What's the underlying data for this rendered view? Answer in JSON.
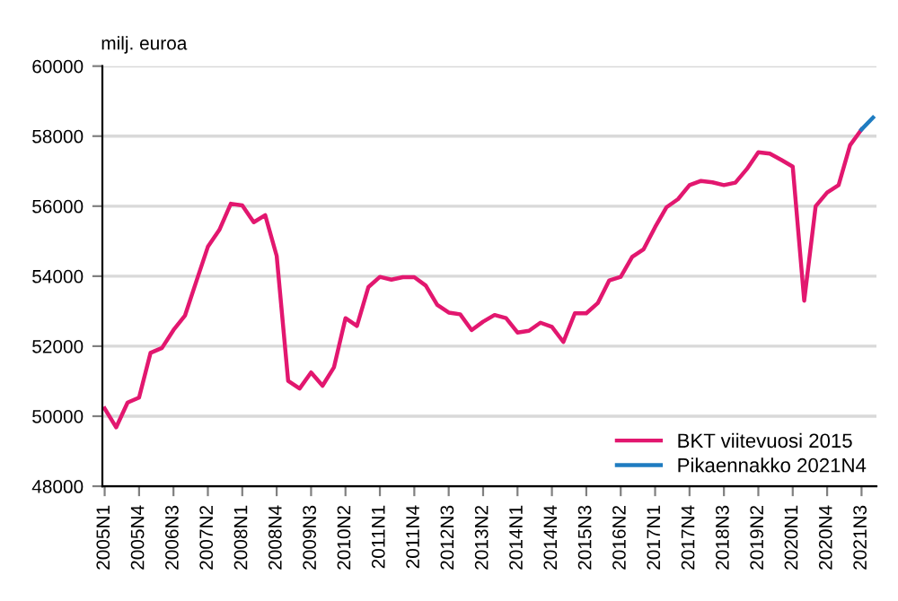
{
  "chart_data": {
    "type": "line",
    "ylabel": "milj. euroa",
    "categories": [
      "2005N1",
      null,
      null,
      "2005N4",
      null,
      null,
      "2006N3",
      null,
      null,
      "2007N2",
      null,
      null,
      "2008N1",
      null,
      null,
      "2008N4",
      null,
      null,
      "2009N3",
      null,
      null,
      "2010N2",
      null,
      null,
      "2011N1",
      null,
      null,
      "2011N4",
      null,
      null,
      "2012N3",
      null,
      null,
      "2013N2",
      null,
      null,
      "2014N1",
      null,
      null,
      "2014N4",
      null,
      null,
      "2015N3",
      null,
      null,
      "2016N2",
      null,
      null,
      "2017N1",
      null,
      null,
      "2017N4",
      null,
      null,
      "2018N3",
      null,
      null,
      "2019N2",
      null,
      null,
      "2020N1",
      null,
      null,
      "2020N4",
      null,
      null,
      "2021N3",
      null
    ],
    "series": [
      {
        "name": "BKT viitevuosi 2015",
        "color": "#e2176f",
        "values": [
          50220,
          49680,
          50390,
          50530,
          51810,
          51950,
          52460,
          52870,
          53860,
          54840,
          55320,
          56070,
          56020,
          55540,
          55740,
          54580,
          51010,
          50790,
          51250,
          50870,
          51400,
          52800,
          52580,
          53690,
          53980,
          53900,
          53970,
          53970,
          53730,
          53180,
          52960,
          52910,
          52460,
          52700,
          52890,
          52800,
          52390,
          52440,
          52670,
          52550,
          52120,
          52940,
          52940,
          53230,
          53880,
          53980,
          54550,
          54770,
          55400,
          55970,
          56200,
          56600,
          56720,
          56680,
          56600,
          56670,
          57060,
          57540,
          57500,
          57320,
          57130,
          53300,
          56000,
          56390,
          56600,
          57740,
          58190,
          null
        ]
      },
      {
        "name": "Pikaennakko 2021N4",
        "color": "#1f7cc1",
        "values": [
          null,
          null,
          null,
          null,
          null,
          null,
          null,
          null,
          null,
          null,
          null,
          null,
          null,
          null,
          null,
          null,
          null,
          null,
          null,
          null,
          null,
          null,
          null,
          null,
          null,
          null,
          null,
          null,
          null,
          null,
          null,
          null,
          null,
          null,
          null,
          null,
          null,
          null,
          null,
          null,
          null,
          null,
          null,
          null,
          null,
          null,
          null,
          null,
          null,
          null,
          null,
          null,
          null,
          null,
          null,
          null,
          null,
          null,
          null,
          null,
          null,
          null,
          null,
          null,
          null,
          null,
          58190,
          58530
        ]
      }
    ],
    "ylim": [
      48000,
      60000
    ],
    "yticks": [
      48000,
      50000,
      52000,
      54000,
      56000,
      58000,
      60000
    ],
    "grid": "y",
    "legend": "bottom right",
    "marker": "none",
    "line_style": "solid"
  }
}
